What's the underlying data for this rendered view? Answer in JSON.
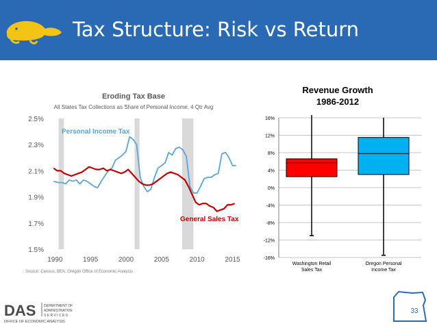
{
  "header": {
    "title": "Tax Structure: Risk vs Return"
  },
  "footer": {
    "logo_text": "DAS",
    "logo_sub": [
      "DEPARTMENT OF",
      "ADMINISTRATIVE",
      "S E R V I C E S"
    ],
    "office_text": "OFFICE OF ECONOMIC ANALYSIS",
    "page_number": "33"
  },
  "colors": {
    "header_bg": "#2a6ab5",
    "pit": "#5aa4d8",
    "sales": "#c00000",
    "recession": "#d9d9d9",
    "wa_box": "#ff0000",
    "or_box": "#00b0f0"
  },
  "chart_data": [
    {
      "type": "line",
      "title": "Eroding Tax Base",
      "subtitle": "All States Tax Collections as Share of Personal Income, 4 Qtr Avg",
      "source": "Source: Census, BEA, Oregon Office of Economic Analysis",
      "xlim": [
        1989,
        2016.5
      ],
      "ylim": [
        1.5,
        2.5
      ],
      "x_ticks": [
        "1990",
        "1995",
        "2000",
        "2005",
        "2010",
        "2015"
      ],
      "y_ticks": [
        "2.5%",
        "2.3%",
        "2.1%",
        "1.9%",
        "1.7%",
        "1.5%"
      ],
      "recessions": [
        [
          1990.5,
          1991.25
        ],
        [
          2001.2,
          2001.9
        ],
        [
          2007.9,
          2009.5
        ]
      ],
      "series": [
        {
          "name": "Personal Income Tax",
          "color": "#5aa4d8",
          "x": [
            1989.8,
            1990.5,
            1991,
            1991.5,
            1992,
            1992.5,
            1993,
            1993.5,
            1994,
            1994.5,
            1995,
            1995.5,
            1996,
            1996.5,
            1997,
            1997.5,
            1998,
            1998.5,
            1999,
            1999.5,
            2000,
            2000.5,
            2001,
            2001.5,
            2002,
            2002.5,
            2003,
            2003.5,
            2004,
            2004.5,
            2005,
            2005.5,
            2006,
            2006.5,
            2007,
            2007.5,
            2008,
            2008.5,
            2009,
            2009.5,
            2010,
            2010.5,
            2011,
            2011.5,
            2012,
            2012.5,
            2013,
            2013.5,
            2014,
            2014.5,
            2015,
            2015.5
          ],
          "y": [
            2.02,
            2.01,
            2.01,
            2.0,
            2.03,
            2.02,
            2.03,
            2.0,
            2.03,
            2.02,
            2.0,
            1.98,
            1.97,
            2.02,
            2.06,
            2.1,
            2.12,
            2.18,
            2.2,
            2.22,
            2.25,
            2.36,
            2.34,
            2.3,
            2.05,
            1.98,
            1.94,
            1.96,
            2.05,
            2.12,
            2.14,
            2.16,
            2.24,
            2.22,
            2.27,
            2.28,
            2.26,
            2.21,
            1.98,
            1.93,
            1.93,
            1.98,
            2.04,
            2.05,
            2.05,
            2.07,
            2.08,
            2.23,
            2.24,
            2.2,
            2.14,
            2.14
          ]
        },
        {
          "name": "General Sales Tax",
          "color": "#c00000",
          "x": [
            1989.8,
            1990.3,
            1990.8,
            1991.3,
            1991.8,
            1992.3,
            1992.8,
            1993.3,
            1993.8,
            1994.3,
            1994.8,
            1995.3,
            1995.8,
            1996.3,
            1996.8,
            1997.3,
            1997.8,
            1998.3,
            1998.8,
            1999.3,
            1999.8,
            2000.3,
            2000.8,
            2001.3,
            2001.8,
            2002.3,
            2002.8,
            2003.3,
            2003.8,
            2004.3,
            2004.8,
            2005.3,
            2005.8,
            2006.3,
            2006.8,
            2007.3,
            2007.8,
            2008.3,
            2008.8,
            2009.3,
            2009.8,
            2010.3,
            2010.8,
            2011.3,
            2011.8,
            2012.3,
            2012.8,
            2013.3,
            2013.8,
            2014.3,
            2014.8,
            2015.3
          ],
          "y": [
            2.12,
            2.1,
            2.1,
            2.08,
            2.07,
            2.06,
            2.07,
            2.08,
            2.09,
            2.11,
            2.13,
            2.12,
            2.11,
            2.11,
            2.12,
            2.1,
            2.11,
            2.1,
            2.09,
            2.08,
            2.09,
            2.11,
            2.08,
            2.05,
            2.02,
            2.0,
            1.99,
            1.99,
            2.0,
            2.02,
            2.04,
            2.06,
            2.08,
            2.09,
            2.08,
            2.07,
            2.05,
            2.03,
            1.98,
            1.92,
            1.86,
            1.84,
            1.85,
            1.85,
            1.83,
            1.82,
            1.79,
            1.8,
            1.81,
            1.84,
            1.84,
            1.85
          ]
        }
      ],
      "labels": {
        "pit": "Personal Income Tax",
        "sales": "General Sales Tax"
      }
    },
    {
      "type": "box",
      "title": "Revenue Growth",
      "subtitle": "1986-2012",
      "ylim": [
        -16,
        16
      ],
      "y_ticks": [
        "16%",
        "12%",
        "8%",
        "4%",
        "0%",
        "-4%",
        "-8%",
        "-12%",
        "-16%"
      ],
      "categories": [
        {
          "label": [
            "Washington Retail",
            "Sales Tax"
          ],
          "min": -11,
          "q1": 2.5,
          "median": 5.7,
          "q3": 6.6,
          "max": 17,
          "color": "#ff0000"
        },
        {
          "label": [
            "Oregon Personal",
            "Income Tax"
          ],
          "min": -15.5,
          "q1": 3,
          "median": 7.8,
          "q3": 11.5,
          "max": 16,
          "color": "#00b0f0"
        }
      ]
    }
  ]
}
